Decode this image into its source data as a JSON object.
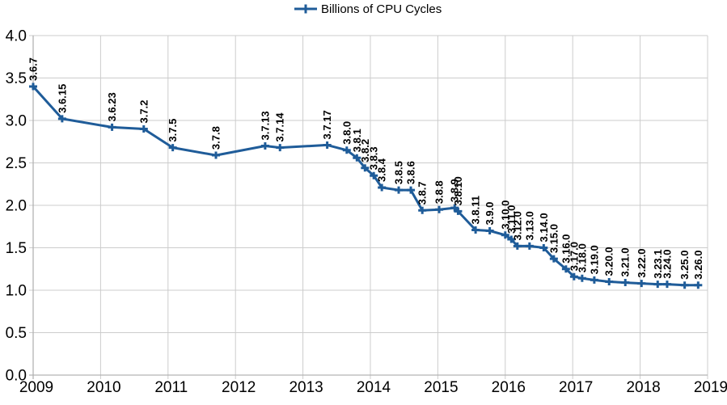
{
  "chart_data": {
    "type": "line",
    "title": "",
    "xlabel": "",
    "ylabel": "",
    "legend_position": "top-center",
    "grid": true,
    "xlim": [
      2009,
      2019
    ],
    "ylim": [
      0.0,
      4.0
    ],
    "x_ticks": [
      {
        "value": 2009,
        "label": "2009"
      },
      {
        "value": 2010,
        "label": "2010"
      },
      {
        "value": 2011,
        "label": "2011"
      },
      {
        "value": 2012,
        "label": "2012"
      },
      {
        "value": 2013,
        "label": "2013"
      },
      {
        "value": 2014,
        "label": "2014"
      },
      {
        "value": 2015,
        "label": "2015"
      },
      {
        "value": 2016,
        "label": "2016"
      },
      {
        "value": 2017,
        "label": "2017"
      },
      {
        "value": 2018,
        "label": "2018"
      },
      {
        "value": 2019,
        "label": "2019"
      }
    ],
    "y_ticks": [
      {
        "value": 0.0,
        "label": "0.0"
      },
      {
        "value": 0.5,
        "label": "0.5"
      },
      {
        "value": 1.0,
        "label": "1.0"
      },
      {
        "value": 1.5,
        "label": "1.5"
      },
      {
        "value": 2.0,
        "label": "2.0"
      },
      {
        "value": 2.5,
        "label": "2.5"
      },
      {
        "value": 3.0,
        "label": "3.0"
      },
      {
        "value": 3.5,
        "label": "3.5"
      },
      {
        "value": 4.0,
        "label": "4.0"
      }
    ],
    "colors": {
      "series": "#1f5c99",
      "grid": "#cccccc",
      "axis": "#b3b3b3",
      "text": "#000000",
      "background": "#ffffff"
    },
    "marker": "plus",
    "series": [
      {
        "name": "Billions of CPU Cycles",
        "points": [
          {
            "label": "3.6.7",
            "x": 2009.0,
            "y": 3.4
          },
          {
            "label": "3.6.15",
            "x": 2009.43,
            "y": 3.02
          },
          {
            "label": "3.6.23",
            "x": 2010.17,
            "y": 2.92
          },
          {
            "label": "3.7.2",
            "x": 2010.64,
            "y": 2.9
          },
          {
            "label": "3.7.5",
            "x": 2011.07,
            "y": 2.68
          },
          {
            "label": "3.7.8",
            "x": 2011.71,
            "y": 2.59
          },
          {
            "label": "3.7.13",
            "x": 2012.44,
            "y": 2.7
          },
          {
            "label": "3.7.14",
            "x": 2012.66,
            "y": 2.68
          },
          {
            "label": "3.7.17",
            "x": 2013.36,
            "y": 2.71
          },
          {
            "label": "3.8.0",
            "x": 2013.65,
            "y": 2.65
          },
          {
            "label": "3.8.1",
            "x": 2013.8,
            "y": 2.56
          },
          {
            "label": "3.8.2",
            "x": 2013.92,
            "y": 2.44
          },
          {
            "label": "3.8.3",
            "x": 2014.05,
            "y": 2.35
          },
          {
            "label": "3.8.4",
            "x": 2014.17,
            "y": 2.21
          },
          {
            "label": "3.8.5",
            "x": 2014.42,
            "y": 2.18
          },
          {
            "label": "3.8.6",
            "x": 2014.6,
            "y": 2.18
          },
          {
            "label": "3.8.7",
            "x": 2014.77,
            "y": 1.94
          },
          {
            "label": "3.8.8",
            "x": 2015.02,
            "y": 1.95
          },
          {
            "label": "3.8.9",
            "x": 2015.25,
            "y": 1.97
          },
          {
            "label": "3.8.10",
            "x": 2015.3,
            "y": 1.93
          },
          {
            "label": "3.8.11",
            "x": 2015.56,
            "y": 1.71
          },
          {
            "label": "3.9.0",
            "x": 2015.77,
            "y": 1.7
          },
          {
            "label": "3.10.0",
            "x": 2016.0,
            "y": 1.65
          },
          {
            "label": "3.11.0",
            "x": 2016.09,
            "y": 1.6
          },
          {
            "label": "3.12.0",
            "x": 2016.18,
            "y": 1.52
          },
          {
            "label": "3.13.0",
            "x": 2016.36,
            "y": 1.52
          },
          {
            "label": "3.14.0",
            "x": 2016.57,
            "y": 1.5
          },
          {
            "label": "3.15.0",
            "x": 2016.72,
            "y": 1.37
          },
          {
            "label": "3.16.0",
            "x": 2016.9,
            "y": 1.25
          },
          {
            "label": "3.17.0",
            "x": 2017.02,
            "y": 1.16
          },
          {
            "label": "3.18.0",
            "x": 2017.14,
            "y": 1.14
          },
          {
            "label": "3.19.0",
            "x": 2017.32,
            "y": 1.12
          },
          {
            "label": "3.20.0",
            "x": 2017.54,
            "y": 1.1
          },
          {
            "label": "3.21.0",
            "x": 2017.78,
            "y": 1.09
          },
          {
            "label": "3.22.0",
            "x": 2018.02,
            "y": 1.08
          },
          {
            "label": "3.23.1",
            "x": 2018.26,
            "y": 1.07
          },
          {
            "label": "3.24.0",
            "x": 2018.4,
            "y": 1.07
          },
          {
            "label": "3.25.0",
            "x": 2018.66,
            "y": 1.06
          },
          {
            "label": "3.26.0",
            "x": 2018.86,
            "y": 1.06
          }
        ]
      }
    ]
  }
}
